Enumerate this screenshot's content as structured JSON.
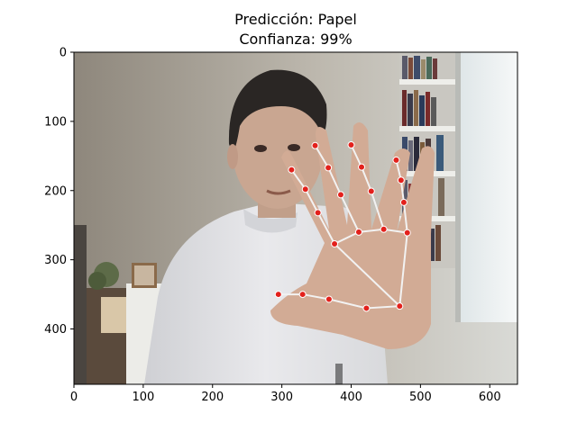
{
  "figure": {
    "title_line1": "Predicción: Papel",
    "title_line2": "Confianza: 99%"
  },
  "chart_data": {
    "type": "image",
    "title": "Predicción: Papel\nConfianza: 99%",
    "xlim": [
      0,
      640
    ],
    "ylim": [
      480,
      0
    ],
    "x_ticks": [
      0,
      100,
      200,
      300,
      400,
      500,
      600
    ],
    "y_ticks": [
      0,
      100,
      200,
      300,
      400
    ],
    "landmarks": [
      {
        "id": 0,
        "x": 470,
        "y": 367
      },
      {
        "id": 1,
        "x": 422,
        "y": 370
      },
      {
        "id": 2,
        "x": 368,
        "y": 357
      },
      {
        "id": 3,
        "x": 330,
        "y": 350
      },
      {
        "id": 4,
        "x": 295,
        "y": 350
      },
      {
        "id": 5,
        "x": 376,
        "y": 277
      },
      {
        "id": 6,
        "x": 352,
        "y": 232
      },
      {
        "id": 7,
        "x": 334,
        "y": 198
      },
      {
        "id": 8,
        "x": 314,
        "y": 170
      },
      {
        "id": 9,
        "x": 411,
        "y": 260
      },
      {
        "id": 10,
        "x": 385,
        "y": 206
      },
      {
        "id": 11,
        "x": 367,
        "y": 167
      },
      {
        "id": 12,
        "x": 348,
        "y": 135
      },
      {
        "id": 13,
        "x": 447,
        "y": 256
      },
      {
        "id": 14,
        "x": 429,
        "y": 201
      },
      {
        "id": 15,
        "x": 415,
        "y": 166
      },
      {
        "id": 16,
        "x": 400,
        "y": 134
      },
      {
        "id": 17,
        "x": 481,
        "y": 261
      },
      {
        "id": 18,
        "x": 476,
        "y": 217
      },
      {
        "id": 19,
        "x": 472,
        "y": 185
      },
      {
        "id": 20,
        "x": 465,
        "y": 156
      }
    ],
    "connections": [
      [
        0,
        1
      ],
      [
        1,
        2
      ],
      [
        2,
        3
      ],
      [
        3,
        4
      ],
      [
        0,
        5
      ],
      [
        5,
        6
      ],
      [
        6,
        7
      ],
      [
        7,
        8
      ],
      [
        5,
        9
      ],
      [
        9,
        10
      ],
      [
        10,
        11
      ],
      [
        11,
        12
      ],
      [
        9,
        13
      ],
      [
        13,
        14
      ],
      [
        14,
        15
      ],
      [
        15,
        16
      ],
      [
        13,
        17
      ],
      [
        17,
        18
      ],
      [
        18,
        19
      ],
      [
        19,
        20
      ],
      [
        0,
        17
      ]
    ],
    "landmark_color": "#e3211c",
    "connection_color": "#f2f2f2"
  }
}
